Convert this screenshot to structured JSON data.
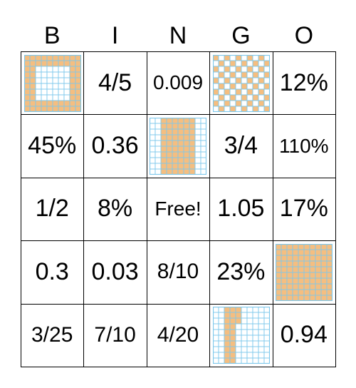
{
  "title_letters": [
    "B",
    "I",
    "N",
    "G",
    "O"
  ],
  "colors": {
    "fill": "#f5be80",
    "line": "#7ec8ec",
    "empty": "#ffffff"
  },
  "cells": [
    {
      "row": 0,
      "col": 0,
      "kind": "grid",
      "pattern": "frame",
      "icon": "hundredths-grid-frame-icon"
    },
    {
      "row": 0,
      "col": 1,
      "kind": "text",
      "text": "4/5"
    },
    {
      "row": 0,
      "col": 2,
      "kind": "text",
      "text": "0.009"
    },
    {
      "row": 0,
      "col": 3,
      "kind": "grid",
      "pattern": "checker",
      "icon": "hundredths-grid-checker-icon"
    },
    {
      "row": 0,
      "col": 4,
      "kind": "text",
      "text": "12%"
    },
    {
      "row": 1,
      "col": 0,
      "kind": "text",
      "text": "45%"
    },
    {
      "row": 1,
      "col": 1,
      "kind": "text",
      "text": "0.36"
    },
    {
      "row": 1,
      "col": 2,
      "kind": "grid",
      "pattern": "band",
      "icon": "hundredths-grid-band-icon"
    },
    {
      "row": 1,
      "col": 3,
      "kind": "text",
      "text": "3/4"
    },
    {
      "row": 1,
      "col": 4,
      "kind": "text",
      "text": "110%"
    },
    {
      "row": 2,
      "col": 0,
      "kind": "text",
      "text": "1/2"
    },
    {
      "row": 2,
      "col": 1,
      "kind": "text",
      "text": "8%"
    },
    {
      "row": 2,
      "col": 2,
      "kind": "text",
      "text": "Free!"
    },
    {
      "row": 2,
      "col": 3,
      "kind": "text",
      "text": "1.05"
    },
    {
      "row": 2,
      "col": 4,
      "kind": "text",
      "text": "17%"
    },
    {
      "row": 3,
      "col": 0,
      "kind": "text",
      "text": "0.3"
    },
    {
      "row": 3,
      "col": 1,
      "kind": "text",
      "text": "0.03"
    },
    {
      "row": 3,
      "col": 2,
      "kind": "text",
      "text": "8/10"
    },
    {
      "row": 3,
      "col": 3,
      "kind": "text",
      "text": "23%"
    },
    {
      "row": 3,
      "col": 4,
      "kind": "grid",
      "pattern": "full",
      "icon": "hundredths-grid-full-icon"
    },
    {
      "row": 4,
      "col": 0,
      "kind": "text",
      "text": "3/25"
    },
    {
      "row": 4,
      "col": 1,
      "kind": "text",
      "text": "7/10"
    },
    {
      "row": 4,
      "col": 2,
      "kind": "text",
      "text": "4/20"
    },
    {
      "row": 4,
      "col": 3,
      "kind": "grid",
      "pattern": "bars",
      "icon": "hundredths-grid-bars-icon"
    },
    {
      "row": 4,
      "col": 4,
      "kind": "text",
      "text": "0.94"
    }
  ]
}
